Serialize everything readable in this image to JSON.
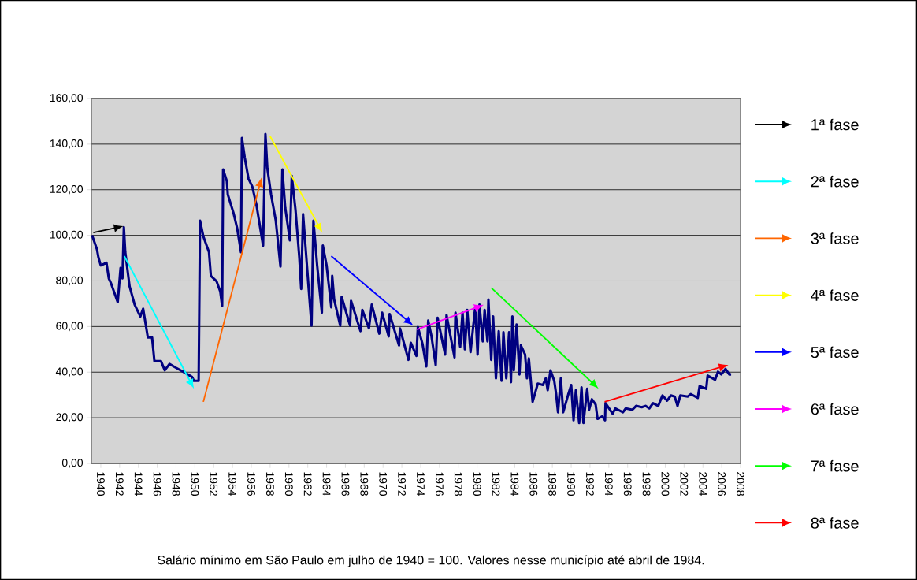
{
  "chart_data": {
    "type": "line",
    "xlim": [
      1939,
      2008
    ],
    "ylim": [
      0,
      160
    ],
    "xticks": [
      1940,
      1942,
      1944,
      1946,
      1948,
      1950,
      1952,
      1954,
      1956,
      1958,
      1960,
      1962,
      1964,
      1966,
      1968,
      1970,
      1972,
      1974,
      1976,
      1978,
      1980,
      1982,
      1984,
      1986,
      1988,
      1990,
      1992,
      1994,
      1996,
      1998,
      2000,
      2002,
      2004,
      2006,
      2008
    ],
    "yticks": [
      {
        "value": 0,
        "label": "0,00"
      },
      {
        "value": 20,
        "label": "20,00"
      },
      {
        "value": 40,
        "label": "40,00"
      },
      {
        "value": 60,
        "label": "60,00"
      },
      {
        "value": 80,
        "label": "80,00"
      },
      {
        "value": 100,
        "label": "100,00"
      },
      {
        "value": 120,
        "label": "120,00"
      },
      {
        "value": 140,
        "label": "140,00"
      },
      {
        "value": 160,
        "label": "160,00"
      }
    ],
    "grid": "y",
    "marker": "none",
    "line_style": "solid",
    "annotations": [
      "1ª fase",
      "2ª fase",
      "3ª fase",
      "4ª fase",
      "5ª fase",
      "6ª fase",
      "7ª fase",
      "8ª fase",
      "Salário mínimo em São Paulo em julho de 1940 = 100. Valores nesse município até abril de 1984."
    ],
    "series": [
      {
        "color": "#000080",
        "x": [
          1939.07,
          1939.6,
          1939.75,
          1940.0,
          1940.6,
          1940.85,
          1941.1,
          1941.8,
          1942.1,
          1942.3,
          1942.45,
          1942.6,
          1943.06,
          1943.6,
          1944.2,
          1944.5,
          1945.0,
          1945.45,
          1945.7,
          1946.4,
          1946.8,
          1947.3,
          1948.0,
          1949.0,
          1949.7,
          1949.9,
          1950.4,
          1950.55,
          1950.9,
          1951.5,
          1951.7,
          1952.3,
          1952.7,
          1952.9,
          1953.0,
          1953.4,
          1953.5,
          1954.1,
          1954.5,
          1954.9,
          1955.0,
          1955.3,
          1955.7,
          1956.1,
          1956.55,
          1957.25,
          1957.5,
          1957.7,
          1958.1,
          1958.6,
          1959.1,
          1959.3,
          1959.6,
          1960.1,
          1960.3,
          1960.7,
          1961.1,
          1961.3,
          1961.5,
          1962.1,
          1962.4,
          1962.6,
          1963.0,
          1963.5,
          1963.6,
          1964.0,
          1964.5,
          1964.6,
          1964.8,
          1965.45,
          1965.6,
          1966.5,
          1966.6,
          1967.6,
          1967.8,
          1968.5,
          1968.8,
          1969.6,
          1969.9,
          1970.6,
          1970.7,
          1971.7,
          1971.8,
          1972.7,
          1972.95,
          1973.55,
          1973.7,
          1974.2,
          1974.6,
          1974.8,
          1975.15,
          1975.6,
          1975.8,
          1976.6,
          1976.75,
          1977.6,
          1977.7,
          1978.2,
          1978.45,
          1978.7,
          1978.95,
          1979.3,
          1979.8,
          1980.05,
          1980.25,
          1980.6,
          1980.8,
          1981.1,
          1981.2,
          1981.5,
          1981.7,
          1982.0,
          1982.3,
          1982.6,
          1982.8,
          1983.1,
          1983.4,
          1983.6,
          1983.75,
          1983.9,
          1984.2,
          1984.5,
          1984.65,
          1985.1,
          1985.3,
          1985.5,
          1985.9,
          1986.45,
          1987.0,
          1987.3,
          1987.5,
          1987.8,
          1988.2,
          1988.4,
          1988.6,
          1988.9,
          1989.15,
          1989.7,
          1990.0,
          1990.25,
          1990.5,
          1990.85,
          1991.1,
          1991.3,
          1991.7,
          1991.9,
          1992.2,
          1992.6,
          1992.8,
          1993.3,
          1993.6,
          1993.65,
          1994.4,
          1994.7,
          1995.5,
          1995.8,
          1996.5,
          1996.9,
          1997.5,
          1997.9,
          1998.3,
          1998.7,
          1999.25,
          1999.7,
          2000.2,
          2000.6,
          2001.0,
          2001.3,
          2001.6,
          2002.4,
          2002.7,
          2003.45,
          2003.65,
          2004.35,
          2004.5,
          2005.3,
          2005.6,
          2005.95,
          2006.4,
          2006.8,
          2007.0
        ],
        "values": [
          100,
          93.7,
          90.3,
          86.8,
          88,
          81.1,
          78.8,
          70.7,
          85.7,
          81.1,
          103.6,
          92.6,
          77.6,
          69.6,
          64.4,
          67.8,
          55.2,
          55.2,
          44.8,
          44.8,
          40.8,
          43.6,
          41.9,
          39.6,
          37.9,
          36.2,
          36.2,
          106.4,
          99.5,
          92.6,
          82.2,
          79.9,
          75.3,
          69,
          128.9,
          123.7,
          117.9,
          109.9,
          103,
          92.6,
          142.7,
          134.1,
          124.8,
          121.4,
          113.3,
          95.5,
          144.4,
          129.5,
          117.9,
          106.4,
          86.3,
          128.9,
          112.2,
          97.8,
          126,
          111,
          90.3,
          76.5,
          109.3,
          76.5,
          60.4,
          106.4,
          86.8,
          66.1,
          95.5,
          86.8,
          68.4,
          82.2,
          71.9,
          60.4,
          73,
          60.4,
          71.3,
          58,
          67.3,
          59.2,
          69.6,
          56.9,
          66.1,
          55.7,
          65.5,
          51.7,
          59.2,
          45.4,
          52.9,
          47.1,
          59.8,
          52.3,
          42.5,
          62.6,
          55.7,
          43.1,
          63.8,
          47.7,
          65,
          46.5,
          66.1,
          51.1,
          66.1,
          50,
          67.3,
          48.8,
          68.4,
          47.7,
          69.6,
          53.5,
          67.3,
          53.5,
          71.9,
          45.4,
          64.4,
          37.3,
          58,
          36.2,
          57.5,
          37.3,
          57.5,
          35.6,
          64.4,
          40.8,
          60.9,
          39,
          51.7,
          47.7,
          37.3,
          46,
          27,
          35,
          34.4,
          37.3,
          32.1,
          40.8,
          36.2,
          30.4,
          22.4,
          37.3,
          22.4,
          30.4,
          34.4,
          18.9,
          32.1,
          17.7,
          33.3,
          17.7,
          32.7,
          23.5,
          28.1,
          25.8,
          19.5,
          20.6,
          18.9,
          26.4,
          21.8,
          24.1,
          22.4,
          24.1,
          23.5,
          25.2,
          24.6,
          25.2,
          24.1,
          26.4,
          25.2,
          29.8,
          27.5,
          29.8,
          29.3,
          25.2,
          29.8,
          29.3,
          30.4,
          28.7,
          33.9,
          32.7,
          38.5,
          36.7,
          40.2,
          39,
          41.4,
          39,
          39
        ]
      }
    ]
  }
}
